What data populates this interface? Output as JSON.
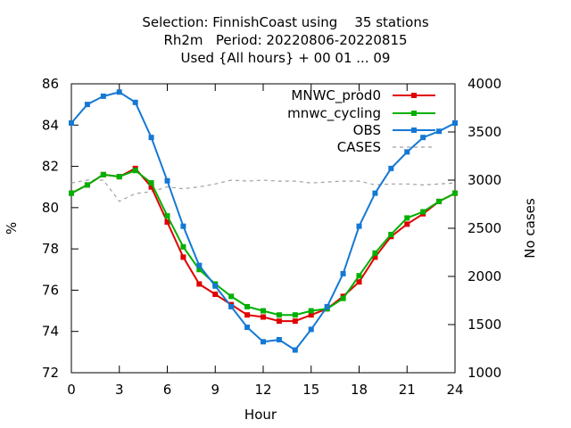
{
  "chart_data": {
    "type": "line",
    "title_lines": [
      "Selection: FinnishCoast using    35 stations",
      "Rh2m   Period: 20220806-20220815",
      "Used {All hours} + 00 01 ... 09"
    ],
    "xlabel": "Hour",
    "ylabel": "%",
    "y2label": "No cases",
    "xlim": [
      0,
      24
    ],
    "ylim": [
      72,
      86
    ],
    "y2lim": [
      1000,
      4000
    ],
    "xticks": [
      0,
      3,
      6,
      9,
      12,
      15,
      18,
      21,
      24
    ],
    "yticks": [
      72,
      74,
      76,
      78,
      80,
      82,
      84,
      86
    ],
    "y2ticks": [
      1000,
      1500,
      2000,
      2500,
      3000,
      3500,
      4000
    ],
    "x": [
      0,
      1,
      2,
      3,
      4,
      5,
      6,
      7,
      8,
      9,
      10,
      11,
      12,
      13,
      14,
      15,
      16,
      17,
      18,
      19,
      20,
      21,
      22,
      23,
      24
    ],
    "legend_position": "top-right",
    "grid": false,
    "series": [
      {
        "name": "MNWC_prod0",
        "color": "#e00000",
        "axis": "y",
        "values": [
          80.7,
          81.1,
          81.6,
          81.5,
          81.9,
          81.0,
          79.3,
          77.6,
          76.3,
          75.8,
          75.3,
          74.8,
          74.7,
          74.5,
          74.5,
          74.8,
          75.1,
          75.7,
          76.4,
          77.6,
          78.6,
          79.2,
          79.7,
          80.3,
          80.7
        ]
      },
      {
        "name": "mnwc_cycling",
        "color": "#00b000",
        "axis": "y",
        "values": [
          80.7,
          81.1,
          81.6,
          81.5,
          81.8,
          81.2,
          79.6,
          78.1,
          77.0,
          76.3,
          75.7,
          75.2,
          75.0,
          74.8,
          74.8,
          75.0,
          75.1,
          75.6,
          76.7,
          77.8,
          78.7,
          79.5,
          79.8,
          80.3,
          80.7
        ]
      },
      {
        "name": "OBS",
        "color": "#1478d4",
        "axis": "y",
        "values": [
          84.1,
          85.0,
          85.4,
          85.6,
          85.1,
          83.4,
          81.3,
          79.1,
          77.2,
          76.2,
          75.2,
          74.2,
          73.5,
          73.6,
          73.1,
          74.1,
          75.2,
          76.8,
          79.1,
          80.7,
          81.9,
          82.7,
          83.4,
          83.7,
          84.1
        ]
      },
      {
        "name": "CASES",
        "color": "#a0a0a0",
        "axis": "y2",
        "values": [
          2970,
          3000,
          3000,
          2780,
          2860,
          2880,
          2930,
          2910,
          2930,
          2960,
          3000,
          2990,
          3000,
          2990,
          2990,
          2970,
          2980,
          2990,
          2990,
          2950,
          2960,
          2960,
          2950,
          2960,
          2970
        ]
      }
    ]
  }
}
